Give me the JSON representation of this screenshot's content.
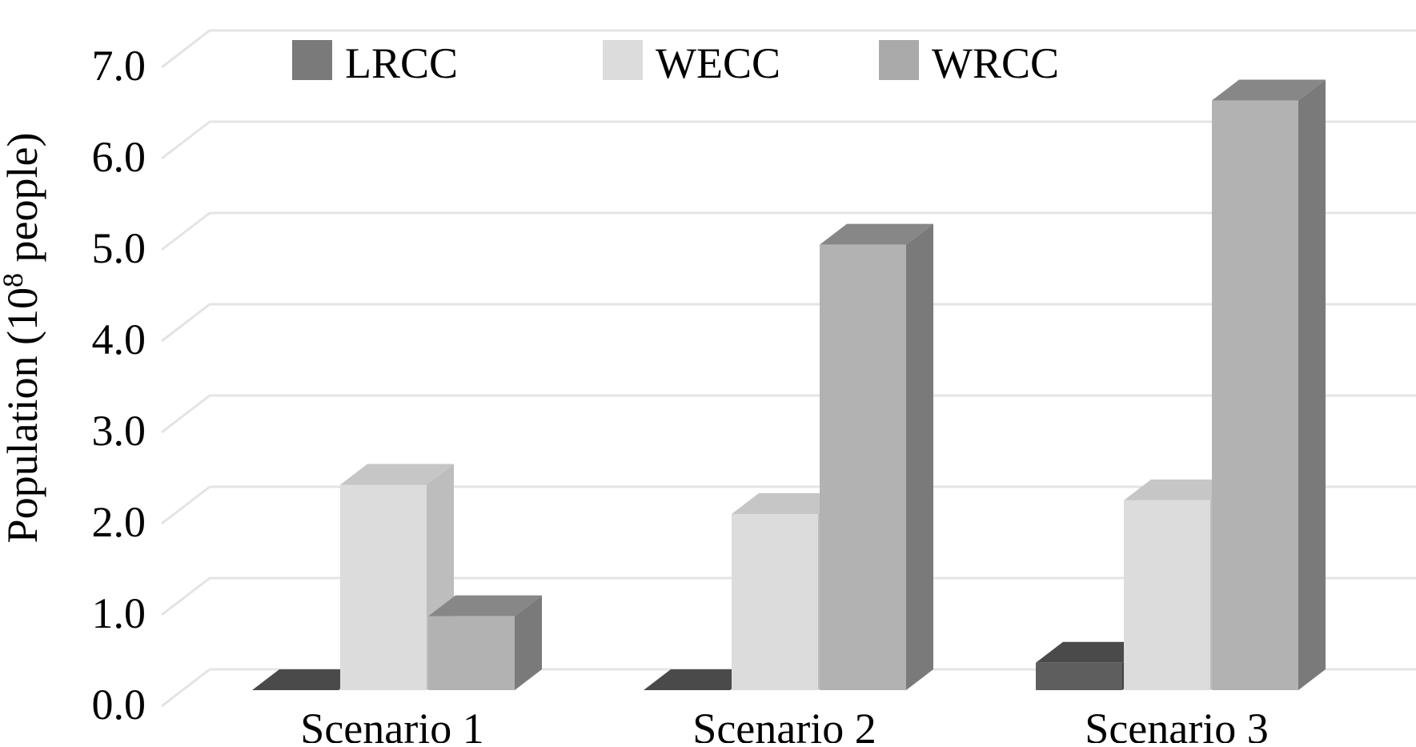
{
  "chart_data": {
    "type": "bar",
    "variant": "3d-clustered-column",
    "title": "",
    "xlabel": "",
    "ylabel": "Population (10",
    "ylabel_superscript": "8",
    "ylabel_suffix": " people)",
    "ylim": [
      0,
      7
    ],
    "yticks": [
      "0.0",
      "1.0",
      "2.0",
      "3.0",
      "4.0",
      "5.0",
      "6.0",
      "7.0"
    ],
    "ytick_values": [
      0,
      1,
      2,
      3,
      4,
      5,
      6,
      7
    ],
    "grid": true,
    "legend_position": "top",
    "categories": [
      "Scenario 1",
      "Scenario 2",
      "Scenario 3"
    ],
    "series": [
      {
        "name": "LRCC",
        "values": [
          0.0,
          0.0,
          0.3
        ]
      },
      {
        "name": "WECC",
        "values": [
          2.25,
          1.93,
          2.08
        ]
      },
      {
        "name": "WRCC",
        "values": [
          0.81,
          4.88,
          6.46
        ]
      }
    ],
    "colors": {
      "LRCC": {
        "front": "#5e5e5e",
        "top": "#4a4a4a",
        "side": "#444444"
      },
      "WECC": {
        "front": "#dcdcdc",
        "top": "#c6c6c6",
        "side": "#bdbdbd"
      },
      "WRCC": {
        "front": "#b2b2b2",
        "top": "#878787",
        "side": "#7a7a7a"
      },
      "gridline": "#e4e4e4",
      "legend_swatch": {
        "LRCC": "#7a7a7a",
        "WECC": "#dcdcdc",
        "WRCC": "#aaaaaa"
      }
    }
  }
}
